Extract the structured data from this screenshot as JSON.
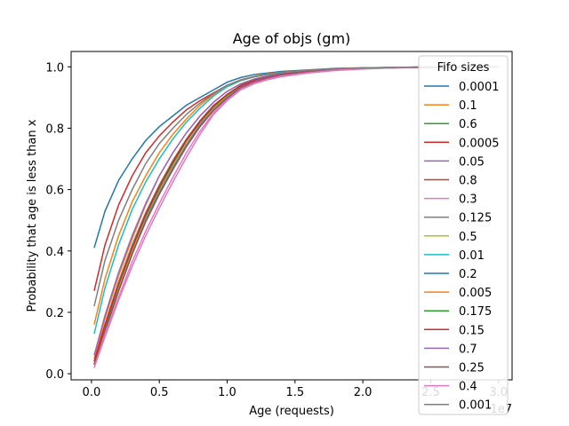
{
  "chart_data": {
    "type": "line",
    "title": "Age of objs (gm)",
    "xlabel": "Age (requests)",
    "ylabel": "Probability that age is less than x",
    "x_scale_label": "1e7",
    "xlim": [
      -1500000,
      31000000
    ],
    "ylim": [
      -0.02,
      1.05
    ],
    "x_ticks": [
      0,
      5000000,
      10000000,
      15000000,
      20000000,
      25000000,
      30000000
    ],
    "x_tick_labels": [
      "0.0",
      "0.5",
      "1.0",
      "1.5",
      "2.0",
      "2.5",
      "3.0"
    ],
    "y_ticks": [
      0,
      0.2,
      0.4,
      0.6,
      0.8,
      1.0
    ],
    "y_tick_labels": [
      "0.0",
      "0.2",
      "0.4",
      "0.6",
      "0.8",
      "1.0"
    ],
    "grid": false,
    "legend": {
      "title": "Fifo sizes",
      "placement": "right"
    },
    "x": [
      200000,
      1000000,
      2000000,
      3000000,
      4000000,
      5000000,
      6000000,
      7000000,
      8000000,
      9000000,
      10000000,
      11000000,
      12000000,
      13000000,
      14000000,
      16000000,
      18000000,
      20000000,
      22000000,
      24000000,
      26000000,
      28000000,
      30000000
    ],
    "series": [
      {
        "name": "0.0001",
        "color": "#1f77b4",
        "values": [
          0.41,
          0.53,
          0.63,
          0.7,
          0.76,
          0.805,
          0.84,
          0.875,
          0.9,
          0.925,
          0.95,
          0.965,
          0.975,
          0.98,
          0.985,
          0.99,
          0.995,
          0.997,
          0.998,
          0.999,
          0.999,
          1.0,
          1.0
        ]
      },
      {
        "name": "0.1",
        "color": "#ff7f0e",
        "values": [
          0.05,
          0.18,
          0.32,
          0.44,
          0.55,
          0.645,
          0.72,
          0.785,
          0.84,
          0.885,
          0.92,
          0.945,
          0.96,
          0.97,
          0.978,
          0.986,
          0.992,
          0.995,
          0.997,
          0.998,
          0.999,
          1.0,
          1.0
        ]
      },
      {
        "name": "0.6",
        "color": "#2ca02c",
        "values": [
          0.03,
          0.15,
          0.28,
          0.4,
          0.51,
          0.6,
          0.68,
          0.755,
          0.815,
          0.865,
          0.905,
          0.935,
          0.955,
          0.966,
          0.975,
          0.985,
          0.991,
          0.995,
          0.997,
          0.998,
          0.999,
          1.0,
          1.0
        ]
      },
      {
        "name": "0.0005",
        "color": "#d62728",
        "values": [
          0.27,
          0.42,
          0.55,
          0.645,
          0.72,
          0.775,
          0.82,
          0.86,
          0.89,
          0.915,
          0.94,
          0.957,
          0.968,
          0.976,
          0.982,
          0.989,
          0.994,
          0.996,
          0.998,
          0.999,
          0.999,
          1.0,
          1.0
        ]
      },
      {
        "name": "0.05",
        "color": "#9467bd",
        "values": [
          0.06,
          0.19,
          0.33,
          0.45,
          0.555,
          0.645,
          0.72,
          0.785,
          0.84,
          0.885,
          0.92,
          0.944,
          0.96,
          0.97,
          0.978,
          0.986,
          0.992,
          0.995,
          0.997,
          0.998,
          0.999,
          1.0,
          1.0
        ]
      },
      {
        "name": "0.8",
        "color": "#8c564b",
        "values": [
          0.03,
          0.14,
          0.27,
          0.39,
          0.5,
          0.59,
          0.67,
          0.745,
          0.81,
          0.86,
          0.9,
          0.932,
          0.952,
          0.965,
          0.974,
          0.984,
          0.991,
          0.995,
          0.997,
          0.998,
          0.999,
          1.0,
          1.0
        ]
      },
      {
        "name": "0.3",
        "color": "#e377c2",
        "values": [
          0.02,
          0.12,
          0.24,
          0.35,
          0.45,
          0.54,
          0.625,
          0.705,
          0.78,
          0.845,
          0.89,
          0.925,
          0.945,
          0.958,
          0.968,
          0.98,
          0.988,
          0.993,
          0.996,
          0.998,
          0.999,
          1.0,
          1.0
        ]
      },
      {
        "name": "0.125",
        "color": "#7f7f7f",
        "values": [
          0.04,
          0.16,
          0.3,
          0.42,
          0.525,
          0.615,
          0.695,
          0.765,
          0.825,
          0.875,
          0.91,
          0.94,
          0.957,
          0.968,
          0.976,
          0.985,
          0.991,
          0.995,
          0.997,
          0.998,
          0.999,
          1.0,
          1.0
        ]
      },
      {
        "name": "0.5",
        "color": "#bcbd22",
        "values": [
          0.03,
          0.15,
          0.28,
          0.4,
          0.51,
          0.6,
          0.68,
          0.755,
          0.815,
          0.865,
          0.905,
          0.935,
          0.955,
          0.966,
          0.975,
          0.985,
          0.991,
          0.995,
          0.997,
          0.998,
          0.999,
          1.0,
          1.0
        ]
      },
      {
        "name": "0.01",
        "color": "#17becf",
        "values": [
          0.13,
          0.28,
          0.42,
          0.535,
          0.625,
          0.7,
          0.765,
          0.82,
          0.865,
          0.905,
          0.935,
          0.955,
          0.967,
          0.975,
          0.981,
          0.988,
          0.993,
          0.996,
          0.998,
          0.999,
          0.999,
          1.0,
          1.0
        ]
      },
      {
        "name": "0.2",
        "color": "#1f77b4",
        "values": [
          0.03,
          0.14,
          0.27,
          0.39,
          0.5,
          0.59,
          0.67,
          0.745,
          0.81,
          0.86,
          0.9,
          0.932,
          0.952,
          0.965,
          0.974,
          0.984,
          0.991,
          0.995,
          0.997,
          0.998,
          0.999,
          1.0,
          1.0
        ]
      },
      {
        "name": "0.005",
        "color": "#ff7f0e",
        "values": [
          0.16,
          0.31,
          0.45,
          0.56,
          0.645,
          0.72,
          0.78,
          0.83,
          0.875,
          0.91,
          0.94,
          0.958,
          0.969,
          0.977,
          0.982,
          0.989,
          0.994,
          0.996,
          0.998,
          0.999,
          0.999,
          1.0,
          1.0
        ]
      },
      {
        "name": "0.175",
        "color": "#2ca02c",
        "values": [
          0.04,
          0.15,
          0.29,
          0.41,
          0.515,
          0.605,
          0.685,
          0.76,
          0.82,
          0.87,
          0.908,
          0.937,
          0.955,
          0.967,
          0.975,
          0.985,
          0.991,
          0.995,
          0.997,
          0.998,
          0.999,
          1.0,
          1.0
        ]
      },
      {
        "name": "0.15",
        "color": "#d62728",
        "values": [
          0.04,
          0.16,
          0.29,
          0.41,
          0.52,
          0.61,
          0.69,
          0.762,
          0.822,
          0.872,
          0.91,
          0.938,
          0.956,
          0.967,
          0.976,
          0.985,
          0.991,
          0.995,
          0.997,
          0.998,
          0.999,
          1.0,
          1.0
        ]
      },
      {
        "name": "0.7",
        "color": "#9467bd",
        "values": [
          0.03,
          0.14,
          0.27,
          0.39,
          0.5,
          0.59,
          0.67,
          0.745,
          0.81,
          0.86,
          0.9,
          0.932,
          0.952,
          0.965,
          0.974,
          0.984,
          0.991,
          0.995,
          0.997,
          0.998,
          0.999,
          1.0,
          1.0
        ]
      },
      {
        "name": "0.25",
        "color": "#8c564b",
        "values": [
          0.03,
          0.14,
          0.27,
          0.39,
          0.495,
          0.585,
          0.665,
          0.74,
          0.805,
          0.858,
          0.898,
          0.93,
          0.95,
          0.963,
          0.973,
          0.983,
          0.99,
          0.994,
          0.997,
          0.998,
          0.999,
          1.0,
          1.0
        ]
      },
      {
        "name": "0.4",
        "color": "#e377c2",
        "values": [
          0.02,
          0.13,
          0.25,
          0.365,
          0.465,
          0.555,
          0.64,
          0.72,
          0.79,
          0.85,
          0.893,
          0.927,
          0.947,
          0.96,
          0.97,
          0.981,
          0.989,
          0.994,
          0.996,
          0.998,
          0.999,
          1.0,
          1.0
        ]
      },
      {
        "name": "0.001",
        "color": "#7f7f7f",
        "values": [
          0.22,
          0.37,
          0.5,
          0.6,
          0.685,
          0.75,
          0.8,
          0.845,
          0.882,
          0.913,
          0.94,
          0.957,
          0.968,
          0.976,
          0.982,
          0.989,
          0.994,
          0.996,
          0.998,
          0.999,
          0.999,
          1.0,
          1.0
        ]
      }
    ]
  }
}
